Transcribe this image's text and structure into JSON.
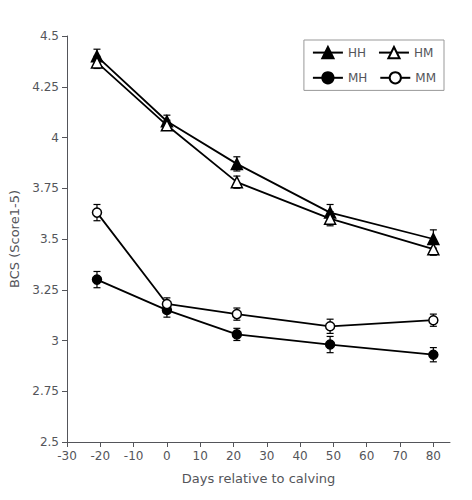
{
  "chart_data": {
    "type": "line",
    "x": [
      -21,
      0,
      21,
      49,
      80
    ],
    "series": [
      {
        "name": "HH",
        "marker": "triangle",
        "values": [
          4.4,
          4.08,
          3.87,
          3.63,
          3.5
        ],
        "yerr": [
          0.035,
          0.03,
          0.035,
          0.04,
          0.045
        ]
      },
      {
        "name": "HM",
        "marker": "triangle_open",
        "values": [
          4.37,
          4.06,
          3.78,
          3.6,
          3.45
        ],
        "yerr": [
          0.03,
          0.025,
          0.03,
          0.035,
          0.03
        ]
      },
      {
        "name": "MH",
        "marker": "circle",
        "values": [
          3.3,
          3.15,
          3.03,
          2.98,
          2.93
        ],
        "yerr": [
          0.04,
          0.035,
          0.03,
          0.04,
          0.035
        ]
      },
      {
        "name": "MM",
        "marker": "circle_open",
        "values": [
          3.63,
          3.18,
          3.13,
          3.07,
          3.1
        ],
        "yerr": [
          0.04,
          0.03,
          0.03,
          0.035,
          0.03
        ]
      }
    ],
    "color": "#000000",
    "xlabel": "Days relative to calving",
    "ylabel": "BCS (Score1-5)",
    "xlim": [
      -30,
      85
    ],
    "ylim": [
      2.5,
      4.5
    ],
    "xticks": [
      -30,
      -20,
      -10,
      0,
      10,
      20,
      30,
      40,
      50,
      60,
      70,
      80
    ],
    "yticks": [
      2.5,
      2.75,
      3.0,
      3.25,
      3.5,
      3.75,
      4.0,
      4.25,
      4.5
    ],
    "grid": false,
    "legend": "upper right"
  }
}
